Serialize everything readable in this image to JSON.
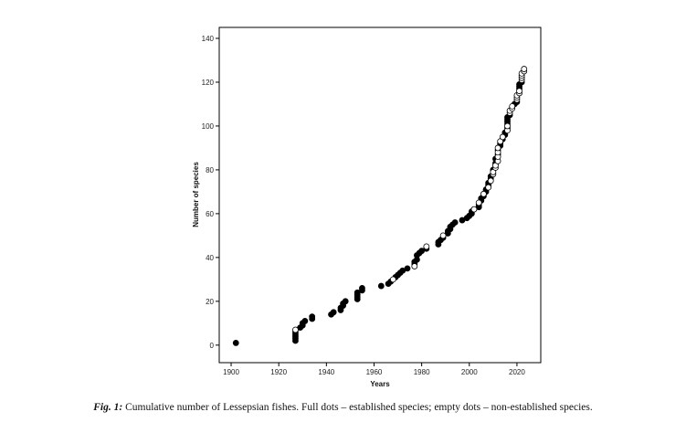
{
  "caption": {
    "label": "Fig. 1:",
    "text": " Cumulative number of Lessepsian fishes. Full dots – established species; empty dots – non-established species."
  },
  "chart_data": {
    "type": "scatter",
    "title": "",
    "xlabel": "Years",
    "ylabel": "Number of species",
    "xlim": [
      1895,
      2030
    ],
    "ylim": [
      -8,
      145
    ],
    "xticks": [
      1900,
      1920,
      1940,
      1960,
      1980,
      2000,
      2020
    ],
    "yticks": [
      0,
      20,
      40,
      60,
      80,
      100,
      120,
      140
    ],
    "grid": false,
    "legend": "none",
    "series": [
      {
        "marker": "filled",
        "color": "#000000",
        "points": [
          [
            1902,
            1
          ],
          [
            1927,
            2
          ],
          [
            1927,
            3
          ],
          [
            1927,
            4
          ],
          [
            1927,
            5
          ],
          [
            1927,
            6
          ],
          [
            1929,
            8
          ],
          [
            1930,
            9
          ],
          [
            1930,
            10
          ],
          [
            1931,
            11
          ],
          [
            1934,
            12
          ],
          [
            1934,
            13
          ],
          [
            1942,
            14
          ],
          [
            1943,
            15
          ],
          [
            1946,
            16
          ],
          [
            1946,
            17
          ],
          [
            1947,
            18
          ],
          [
            1947,
            19
          ],
          [
            1948,
            20
          ],
          [
            1953,
            21
          ],
          [
            1953,
            22
          ],
          [
            1953,
            23
          ],
          [
            1953,
            24
          ],
          [
            1955,
            25
          ],
          [
            1955,
            26
          ],
          [
            1963,
            27
          ],
          [
            1966,
            28
          ],
          [
            1967,
            29
          ],
          [
            1969,
            31
          ],
          [
            1970,
            32
          ],
          [
            1971,
            33
          ],
          [
            1972,
            34
          ],
          [
            1974,
            35
          ],
          [
            1977,
            37
          ],
          [
            1977,
            38
          ],
          [
            1978,
            39
          ],
          [
            1978,
            41
          ],
          [
            1979,
            42
          ],
          [
            1980,
            43
          ],
          [
            1982,
            44
          ],
          [
            1987,
            46
          ],
          [
            1987,
            47
          ],
          [
            1988,
            48
          ],
          [
            1989,
            49
          ],
          [
            1991,
            51
          ],
          [
            1991,
            52
          ],
          [
            1992,
            53
          ],
          [
            1992,
            54
          ],
          [
            1993,
            55
          ],
          [
            1994,
            56
          ],
          [
            1997,
            57
          ],
          [
            1999,
            58
          ],
          [
            2000,
            59
          ],
          [
            2001,
            60
          ],
          [
            2001,
            61
          ],
          [
            2004,
            63
          ],
          [
            2004,
            64
          ],
          [
            2005,
            66
          ],
          [
            2005,
            67
          ],
          [
            2006,
            68
          ],
          [
            2007,
            70
          ],
          [
            2007,
            71
          ],
          [
            2008,
            73
          ],
          [
            2008,
            74
          ],
          [
            2009,
            76
          ],
          [
            2009,
            77
          ],
          [
            2010,
            80
          ],
          [
            2011,
            83
          ],
          [
            2011,
            85
          ],
          [
            2012,
            87
          ],
          [
            2012,
            89
          ],
          [
            2013,
            91
          ],
          [
            2013,
            92
          ],
          [
            2014,
            94
          ],
          [
            2015,
            96
          ],
          [
            2015,
            97
          ],
          [
            2016,
            99
          ],
          [
            2016,
            101
          ],
          [
            2016,
            102
          ],
          [
            2016,
            103
          ],
          [
            2016,
            104
          ],
          [
            2017,
            105
          ],
          [
            2019,
            110
          ],
          [
            2020,
            111
          ],
          [
            2021,
            117
          ],
          [
            2021,
            118
          ],
          [
            2021,
            119
          ],
          [
            2022,
            120
          ]
        ]
      },
      {
        "marker": "open",
        "color": "#000000",
        "points": [
          [
            1927,
            7
          ],
          [
            1968,
            30
          ],
          [
            1977,
            36
          ],
          [
            1982,
            45
          ],
          [
            1989,
            50
          ],
          [
            2002,
            62
          ],
          [
            2004,
            65
          ],
          [
            2006,
            69
          ],
          [
            2008,
            72
          ],
          [
            2009,
            75
          ],
          [
            2010,
            78
          ],
          [
            2010,
            79
          ],
          [
            2011,
            81
          ],
          [
            2011,
            82
          ],
          [
            2012,
            84
          ],
          [
            2012,
            86
          ],
          [
            2012,
            88
          ],
          [
            2012,
            90
          ],
          [
            2013,
            93
          ],
          [
            2014,
            95
          ],
          [
            2016,
            98
          ],
          [
            2016,
            100
          ],
          [
            2017,
            106
          ],
          [
            2017,
            107
          ],
          [
            2018,
            108
          ],
          [
            2018,
            109
          ],
          [
            2020,
            112
          ],
          [
            2020,
            113
          ],
          [
            2020,
            114
          ],
          [
            2021,
            115
          ],
          [
            2021,
            116
          ],
          [
            2022,
            121
          ],
          [
            2022,
            122
          ],
          [
            2022,
            123
          ],
          [
            2022,
            124
          ],
          [
            2023,
            125
          ],
          [
            2023,
            126
          ]
        ]
      }
    ]
  }
}
